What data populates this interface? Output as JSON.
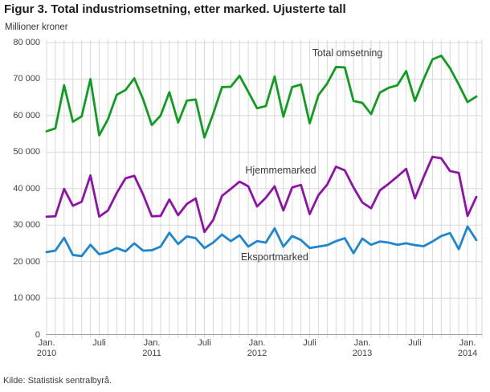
{
  "figure": {
    "title": "Figur 3. Total industriomsetning, etter marked. Ujusterte tall",
    "unit_caption": "Millioner kroner",
    "source": "Kilde: Statistisk sentralbyrå."
  },
  "chart_data": {
    "type": "line",
    "title": "Figur 3. Total industriomsetning, etter marked. Ujusterte tall",
    "ylabel": "Millioner kroner",
    "x_start": "Jan. 2010",
    "x_end": "Feb. 2014",
    "x_interval": "monthly",
    "n_points": 50,
    "ylim": [
      0,
      80000
    ],
    "grid": true,
    "legend_position": "inline-labels",
    "y_ticks": [
      {
        "v": 0,
        "label": "0"
      },
      {
        "v": 10000,
        "label": "10 000"
      },
      {
        "v": 20000,
        "label": "20 000"
      },
      {
        "v": 30000,
        "label": "30 000"
      },
      {
        "v": 40000,
        "label": "40 000"
      },
      {
        "v": 50000,
        "label": "50 000"
      },
      {
        "v": 60000,
        "label": "60 000"
      },
      {
        "v": 70000,
        "label": "70 000"
      },
      {
        "v": 80000,
        "label": "80 000"
      }
    ],
    "x_ticks": [
      {
        "m": 0,
        "label1": "Jan.",
        "label2": "2010"
      },
      {
        "m": 6,
        "label1": "Juli",
        "label2": ""
      },
      {
        "m": 12,
        "label1": "Jan.",
        "label2": "2011"
      },
      {
        "m": 18,
        "label1": "Juli",
        "label2": ""
      },
      {
        "m": 24,
        "label1": "Jan.",
        "label2": "2012"
      },
      {
        "m": 30,
        "label1": "Juli",
        "label2": ""
      },
      {
        "m": 36,
        "label1": "Jan.",
        "label2": "2013"
      },
      {
        "m": 42,
        "label1": "Juli",
        "label2": ""
      },
      {
        "m": 48,
        "label1": "Jan.",
        "label2": "2014"
      }
    ],
    "series": [
      {
        "name": "Total omsetning",
        "color": "#0f9d1f",
        "values": [
          55700,
          56500,
          68300,
          58300,
          59800,
          70000,
          54600,
          59000,
          65700,
          67000,
          70200,
          64500,
          57400,
          60000,
          66400,
          58100,
          64100,
          64400,
          54000,
          60500,
          67800,
          67900,
          70900,
          66500,
          62000,
          62600,
          70700,
          59700,
          67800,
          68500,
          57900,
          65600,
          68800,
          73300,
          73200,
          64000,
          63500,
          60400,
          66300,
          67600,
          68300,
          72200,
          64000,
          70000,
          75400,
          76400,
          73000,
          68500,
          63700,
          65200
        ]
      },
      {
        "name": "Hjemmemarked",
        "color": "#8e12a8",
        "values": [
          32300,
          32400,
          39900,
          35300,
          36400,
          43600,
          32300,
          34000,
          38800,
          42800,
          43500,
          38400,
          32400,
          32500,
          37000,
          32700,
          35800,
          37300,
          28100,
          31400,
          38000,
          39900,
          41900,
          40600,
          35100,
          37500,
          40600,
          34000,
          40300,
          41000,
          33000,
          38200,
          41100,
          46000,
          45000,
          40300,
          36200,
          34600,
          39500,
          41300,
          43300,
          45400,
          37300,
          43200,
          48700,
          48300,
          44800,
          44300,
          32500,
          37700
        ]
      },
      {
        "name": "Eksportmarked",
        "color": "#1e86d0",
        "values": [
          22600,
          23000,
          26500,
          21800,
          21500,
          24600,
          22000,
          22600,
          23700,
          22800,
          25000,
          23000,
          23100,
          24100,
          27900,
          24800,
          26900,
          26400,
          23700,
          25200,
          27400,
          25600,
          27200,
          24100,
          25600,
          25200,
          29100,
          24100,
          27000,
          25900,
          23700,
          24100,
          24500,
          25600,
          26400,
          22300,
          26300,
          24600,
          25500,
          25200,
          24600,
          25000,
          24500,
          24200,
          25500,
          27000,
          27800,
          23400,
          29600,
          25900
        ]
      }
    ],
    "annotations": [
      {
        "text": "Total omsetning",
        "m": 34.3,
        "v": 77100
      },
      {
        "text": "Hjemmemarked",
        "m": 26.7,
        "v": 45100
      },
      {
        "text": "Eksportmarked",
        "m": 26.0,
        "v": 21300
      }
    ],
    "colors": {
      "grid": "#d8d8d8",
      "axis": "#a0a0a0",
      "tick_text": "#404040"
    }
  }
}
